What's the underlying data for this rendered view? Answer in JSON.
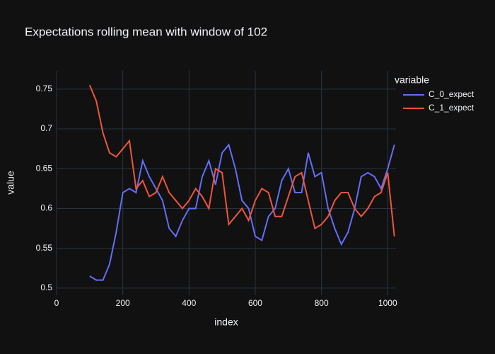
{
  "chart_data": {
    "type": "line",
    "title": "Expectations rolling mean with window of 102",
    "x_label": "index",
    "y_label": "value",
    "legend_title": "variable",
    "x": [
      100,
      120,
      140,
      160,
      180,
      200,
      220,
      240,
      260,
      280,
      300,
      320,
      340,
      360,
      380,
      400,
      420,
      440,
      460,
      480,
      500,
      520,
      540,
      560,
      580,
      600,
      620,
      640,
      660,
      680,
      700,
      720,
      740,
      760,
      780,
      800,
      820,
      840,
      860,
      880,
      900,
      920,
      940,
      960,
      980,
      1000,
      1020
    ],
    "series": [
      {
        "name": "C_0_expect",
        "color": "#636efa",
        "values": [
          0.515,
          0.51,
          0.51,
          0.53,
          0.57,
          0.62,
          0.625,
          0.62,
          0.66,
          0.64,
          0.625,
          0.61,
          0.575,
          0.565,
          0.585,
          0.6,
          0.6,
          0.64,
          0.66,
          0.63,
          0.67,
          0.68,
          0.65,
          0.61,
          0.6,
          0.565,
          0.56,
          0.59,
          0.6,
          0.635,
          0.65,
          0.62,
          0.62,
          0.67,
          0.64,
          0.645,
          0.6,
          0.575,
          0.555,
          0.57,
          0.6,
          0.64,
          0.645,
          0.64,
          0.625,
          0.65,
          0.68
        ]
      },
      {
        "name": "C_1_expect",
        "color": "#ef553b",
        "values": [
          0.755,
          0.735,
          0.695,
          0.67,
          0.665,
          0.675,
          0.685,
          0.625,
          0.635,
          0.615,
          0.62,
          0.64,
          0.62,
          0.61,
          0.6,
          0.61,
          0.625,
          0.615,
          0.6,
          0.65,
          0.645,
          0.58,
          0.59,
          0.6,
          0.585,
          0.61,
          0.625,
          0.62,
          0.59,
          0.59,
          0.615,
          0.64,
          0.645,
          0.61,
          0.575,
          0.58,
          0.59,
          0.61,
          0.62,
          0.62,
          0.6,
          0.59,
          0.6,
          0.615,
          0.62,
          0.645,
          0.565
        ]
      }
    ],
    "xlim": [
      0,
      1025
    ],
    "ylim": [
      0.491,
      0.773
    ],
    "xticks": [
      0,
      200,
      400,
      600,
      800,
      1000
    ],
    "yticks": [
      0.5,
      0.55,
      0.6,
      0.65,
      0.7,
      0.75
    ],
    "grid": true
  }
}
